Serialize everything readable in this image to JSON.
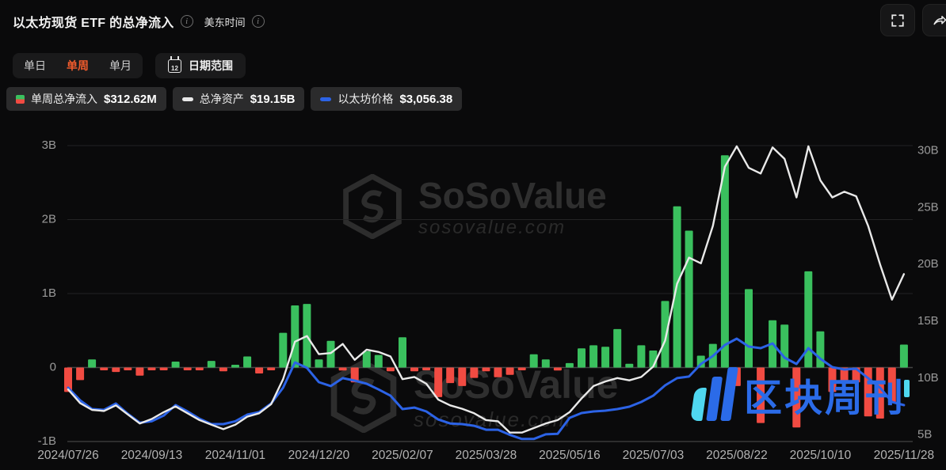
{
  "header": {
    "title": "以太坊现货 ETF 的总净流入",
    "timezone_label": "美东时间",
    "info_glyph": "i"
  },
  "toolbar": {
    "tabs": [
      {
        "label": "单日",
        "active": false
      },
      {
        "label": "单周",
        "active": true
      },
      {
        "label": "单月",
        "active": false
      }
    ],
    "date_range_label": "日期范围",
    "calendar_icon_day": "12"
  },
  "legend": {
    "items": [
      {
        "label": "单周总净流入",
        "value": "$312.62M",
        "swatch": "green-red-bar"
      },
      {
        "label": "总净资产",
        "value": "$19.15B",
        "swatch": "white-dash"
      },
      {
        "label": "以太坊价格",
        "value": "$3,056.38",
        "swatch": "blue-dash"
      }
    ]
  },
  "watermark": {
    "brand": "SoSoValue",
    "domain": "sosovalue.com"
  },
  "footer_logo": {
    "text": "区块周刊"
  },
  "colors": {
    "background": "#0a0a0b",
    "bar_positive": "#3ac05e",
    "bar_negative": "#f14b42",
    "nav_line": "#e9e9e9",
    "price_line": "#2c63e6",
    "accent_orange": "#ef5b2d",
    "axis_text": "#9a9a9a",
    "grid": "#232324",
    "zero_line": "#454545",
    "bottom_axis": "#3a3a3a",
    "logo_blue": "#2b6be8",
    "logo_cyan": "#4fd7f0"
  },
  "chart_data": {
    "type": "bar",
    "title": "以太坊现货 ETF 的总净流入（单周）",
    "x_tick_labels": [
      "2024/07/26",
      "2024/09/13",
      "2024/11/01",
      "2024/12/20",
      "2025/02/07",
      "2025/03/28",
      "2025/05/16",
      "2025/07/03",
      "2025/08/22",
      "2025/10/10",
      "2025/11/28"
    ],
    "weeks_per_tick": 7,
    "left_axis": {
      "labels": [
        "3B",
        "2B",
        "1B",
        "0",
        "-1B"
      ],
      "values_B": [
        3,
        2,
        1,
        0,
        -1
      ],
      "unit": "USD"
    },
    "right_axis": {
      "labels": [
        "30B",
        "25B",
        "20B",
        "15B",
        "10B",
        "5B"
      ],
      "values_B": [
        30,
        25,
        20,
        15,
        10,
        5
      ],
      "unit": "USD"
    },
    "grid": "horizontal-only",
    "legend_position": "top-left",
    "series": [
      {
        "name": "单周总净流入",
        "type": "bar",
        "axis": "left",
        "unit": "$B",
        "latest_display": "$312.62M",
        "values": [
          -0.33,
          -0.17,
          0.11,
          -0.02,
          -0.06,
          -0.02,
          -0.11,
          -0.03,
          -0.03,
          0.08,
          -0.03,
          -0.02,
          0.09,
          -0.05,
          0.03,
          0.15,
          -0.08,
          -0.03,
          0.47,
          0.84,
          0.86,
          0.11,
          0.36,
          -0.04,
          -0.2,
          0.22,
          0.17,
          -0.05,
          0.41,
          -0.05,
          -0.03,
          -0.4,
          -0.21,
          -0.25,
          -0.14,
          -0.05,
          -0.13,
          -0.1,
          -0.03,
          0.18,
          0.11,
          -0.04,
          0.06,
          0.26,
          0.3,
          0.28,
          0.52,
          0.05,
          0.3,
          0.23,
          0.9,
          2.18,
          1.85,
          0.16,
          0.32,
          2.87,
          -0.25,
          1.06,
          -0.75,
          0.64,
          0.58,
          -0.81,
          1.3,
          0.49,
          -0.33,
          -0.22,
          -0.2,
          -0.66,
          -0.69,
          -0.47,
          0.31
        ]
      },
      {
        "name": "总净资产",
        "type": "line",
        "axis": "right",
        "unit": "$B",
        "latest_display": "$19.15B",
        "values": [
          9.0,
          7.8,
          7.2,
          7.1,
          7.6,
          6.8,
          6.0,
          6.4,
          7.0,
          7.5,
          6.9,
          6.3,
          5.9,
          5.5,
          5.9,
          6.6,
          6.9,
          7.7,
          9.9,
          13.2,
          13.7,
          12.1,
          12.2,
          13.0,
          11.6,
          12.5,
          12.3,
          11.9,
          9.9,
          10.1,
          9.5,
          8.1,
          7.6,
          7.3,
          6.9,
          6.3,
          6.2,
          5.2,
          5.2,
          5.6,
          6.0,
          6.3,
          7.0,
          8.2,
          9.3,
          9.7,
          10.0,
          9.8,
          10.1,
          11.0,
          13.3,
          18.3,
          20.6,
          20.1,
          23.4,
          28.6,
          30.4,
          28.5,
          28.0,
          30.3,
          29.3,
          25.9,
          30.4,
          27.4,
          25.9,
          26.4,
          26.0,
          23.4,
          20.0,
          16.9,
          19.15
        ]
      },
      {
        "name": "以太坊价格",
        "type": "line",
        "axis": "right-visual-overlay",
        "note": "price axis hidden; values are visual positions on right-axis B scale",
        "latest_display": "$3,056.38",
        "latest_price_usd": 3056.38,
        "values": [
          9.15,
          8.04,
          7.27,
          7.2,
          7.76,
          6.85,
          6.07,
          6.2,
          6.7,
          7.62,
          7.06,
          6.42,
          5.95,
          5.95,
          6.2,
          6.78,
          7.0,
          7.76,
          9.15,
          11.38,
          10.9,
          9.64,
          9.3,
          9.99,
          9.78,
          9.5,
          9.0,
          8.45,
          7.27,
          7.4,
          7.06,
          6.35,
          6.0,
          5.95,
          5.8,
          5.45,
          5.45,
          5.0,
          4.64,
          4.64,
          5.05,
          5.1,
          6.5,
          6.92,
          7.06,
          7.13,
          7.27,
          7.48,
          7.9,
          8.45,
          9.36,
          9.99,
          10.13,
          11.24,
          11.94,
          12.91,
          13.47,
          12.77,
          12.63,
          13.05,
          11.8,
          11.24,
          12.63,
          11.7,
          10.96,
          10.75,
          10.82,
          9.99,
          9.15,
          7.9,
          7.62
        ]
      }
    ]
  }
}
